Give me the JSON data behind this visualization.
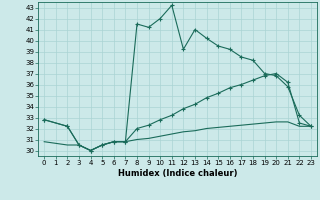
{
  "xlabel": "Humidex (Indice chaleur)",
  "bg_color": "#cce9e9",
  "grid_color": "#aad4d4",
  "line_color": "#1a6b5a",
  "xlim": [
    -0.5,
    23.5
  ],
  "ylim": [
    29.5,
    43.5
  ],
  "xticks": [
    0,
    1,
    2,
    3,
    4,
    5,
    6,
    7,
    8,
    9,
    10,
    11,
    12,
    13,
    14,
    15,
    16,
    17,
    18,
    19,
    20,
    21,
    22,
    23
  ],
  "yticks": [
    30,
    31,
    32,
    33,
    34,
    35,
    36,
    37,
    38,
    39,
    40,
    41,
    42,
    43
  ],
  "l1x": [
    0,
    2,
    3,
    4,
    5,
    6,
    7,
    8,
    9,
    10,
    11,
    12,
    13,
    14,
    15,
    16,
    17,
    18,
    19,
    20,
    21,
    22,
    23
  ],
  "l1y": [
    32.8,
    32.2,
    30.5,
    30.0,
    30.5,
    30.8,
    30.8,
    41.5,
    41.2,
    42.0,
    43.2,
    39.2,
    41.0,
    40.2,
    39.5,
    39.2,
    38.5,
    38.2,
    37.0,
    36.8,
    35.8,
    33.2,
    32.2
  ],
  "l2x": [
    0,
    2,
    3,
    4,
    5,
    6,
    7,
    8,
    9,
    10,
    11,
    12,
    13,
    14,
    15,
    16,
    17,
    18,
    19,
    20,
    21,
    22,
    23
  ],
  "l2y": [
    32.8,
    32.2,
    30.5,
    30.0,
    30.5,
    30.8,
    30.8,
    32.0,
    32.3,
    32.8,
    33.2,
    33.8,
    34.2,
    34.8,
    35.2,
    35.7,
    36.0,
    36.4,
    36.8,
    37.0,
    36.2,
    32.5,
    32.2
  ],
  "l3x": [
    0,
    2,
    3,
    4,
    5,
    6,
    7,
    8,
    9,
    10,
    11,
    12,
    13,
    14,
    15,
    16,
    17,
    18,
    19,
    20,
    21,
    22,
    23
  ],
  "l3y": [
    30.8,
    30.5,
    30.5,
    30.0,
    30.5,
    30.8,
    30.8,
    31.0,
    31.1,
    31.3,
    31.5,
    31.7,
    31.8,
    32.0,
    32.1,
    32.2,
    32.3,
    32.4,
    32.5,
    32.6,
    32.6,
    32.2,
    32.2
  ]
}
